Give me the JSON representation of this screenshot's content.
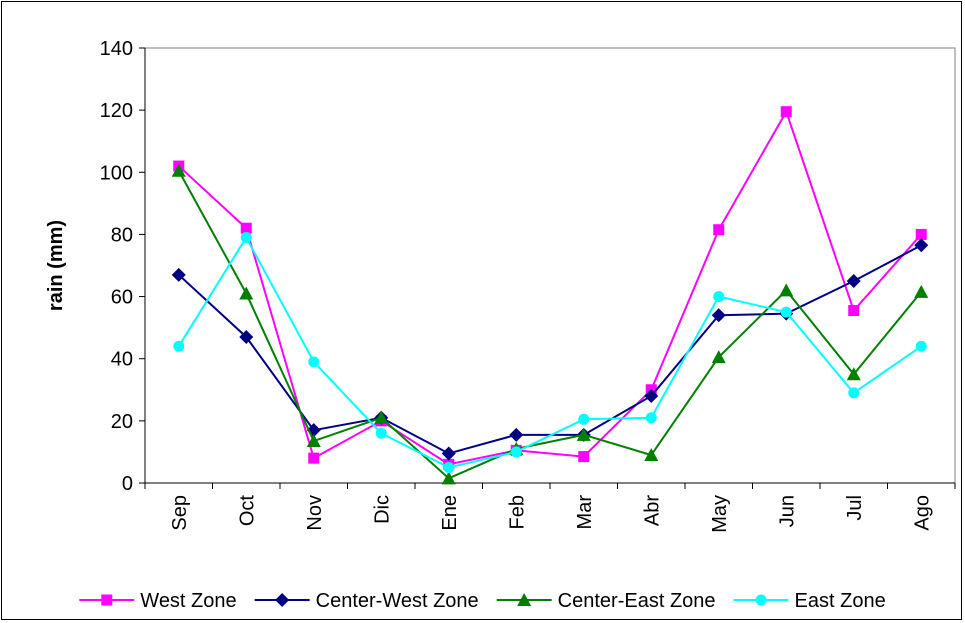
{
  "chart_data": {
    "type": "line",
    "title": "",
    "xlabel": "",
    "ylabel": "rain (mm)",
    "ylim": [
      0,
      140
    ],
    "yticks": [
      0,
      20,
      40,
      60,
      80,
      100,
      120,
      140
    ],
    "grid": false,
    "legend_position": "bottom",
    "categories": [
      "Sep",
      "Oct",
      "Nov",
      "Dic",
      "Ene",
      "Feb",
      "Mar",
      "Abr",
      "May",
      "Jun",
      "Jul",
      "Ago"
    ],
    "series": [
      {
        "name": "West Zone",
        "color": "#ff00ff",
        "marker": "square",
        "values": [
          102,
          82,
          8,
          20,
          6,
          10.5,
          8.5,
          30,
          81.5,
          119.5,
          55.5,
          80
        ]
      },
      {
        "name": "Center-West Zone",
        "color": "#000080",
        "marker": "diamond",
        "values": [
          67,
          47,
          17,
          21,
          9.5,
          15.5,
          15.5,
          28,
          54,
          54.5,
          65,
          76.5
        ]
      },
      {
        "name": "Center-East Zone",
        "color": "#008000",
        "marker": "triangle",
        "values": [
          100.5,
          61,
          13.5,
          21,
          1.5,
          11,
          15.5,
          9,
          40.5,
          62,
          35,
          61.5
        ]
      },
      {
        "name": "East Zone",
        "color": "#00ffff",
        "marker": "circle",
        "values": [
          44,
          79,
          39,
          16,
          5,
          10,
          20.5,
          21,
          60,
          55,
          29,
          44
        ]
      }
    ]
  }
}
